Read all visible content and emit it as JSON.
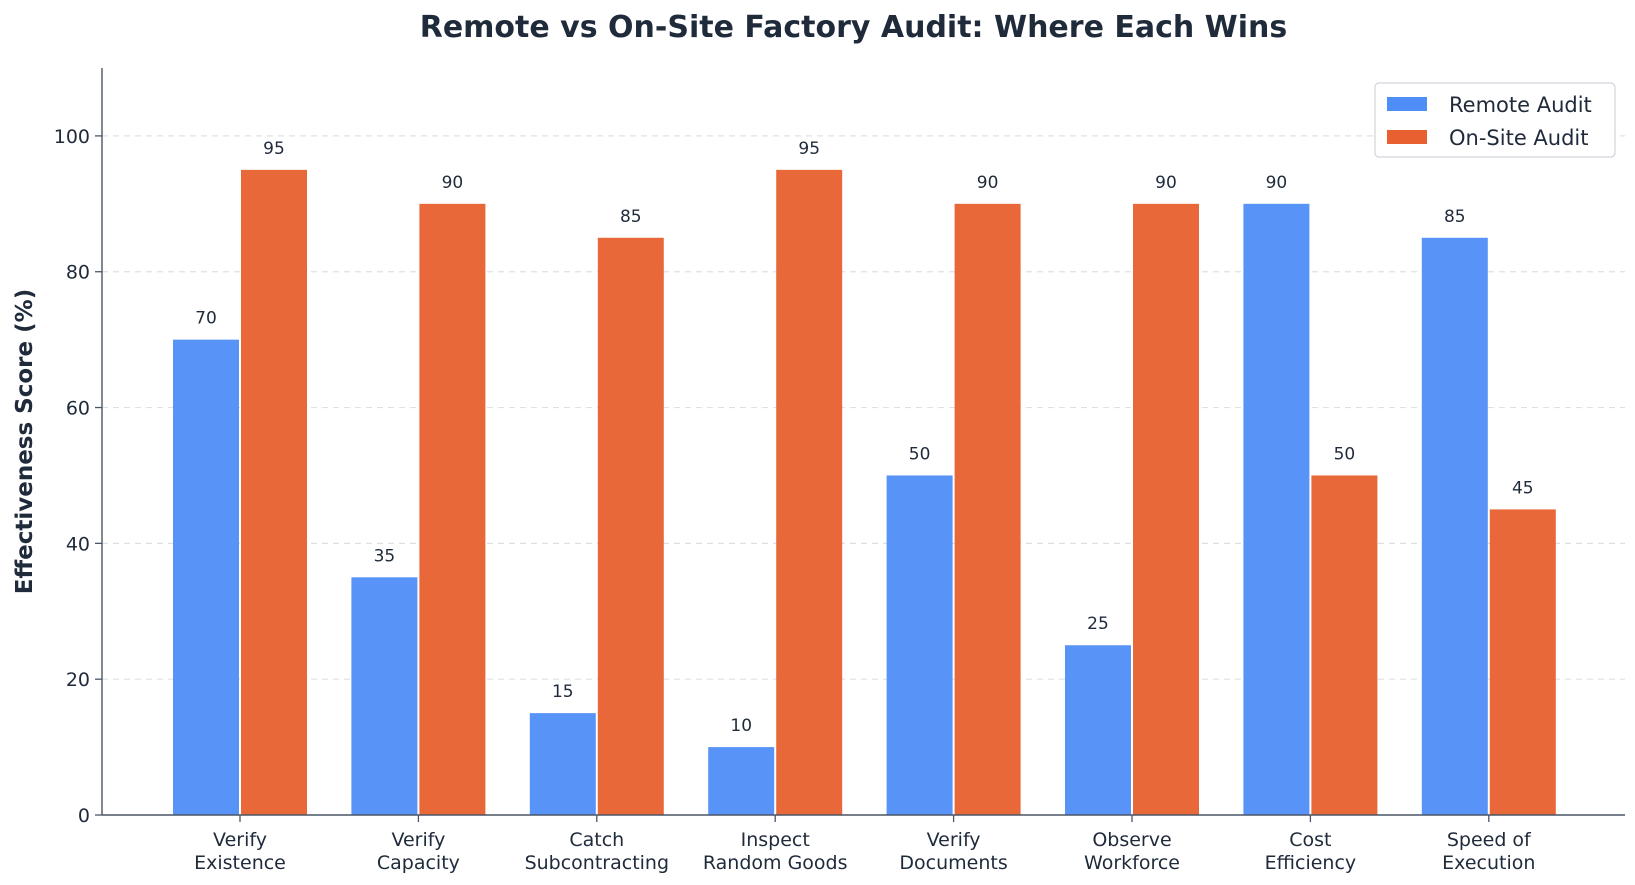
{
  "chart_data": {
    "type": "bar",
    "title": "Remote vs On-Site Factory Audit: Where Each Wins",
    "xlabel": "",
    "ylabel": "Effectiveness Score (%)",
    "ylim": [
      0,
      110
    ],
    "yticks": [
      0,
      20,
      40,
      60,
      80,
      100
    ],
    "grid": "horizontal dashed",
    "legend_position": "top-right",
    "categories": [
      [
        "Verify",
        "Existence"
      ],
      [
        "Verify",
        "Capacity"
      ],
      [
        "Catch",
        "Subcontracting"
      ],
      [
        "Inspect",
        "Random Goods"
      ],
      [
        "Verify",
        "Documents"
      ],
      [
        "Observe",
        "Workforce"
      ],
      [
        "Cost",
        "Efficiency"
      ],
      [
        "Speed of",
        "Execution"
      ]
    ],
    "series": [
      {
        "name": "Remote Audit",
        "color": "#4f8ef7",
        "values": [
          70,
          35,
          15,
          10,
          50,
          25,
          90,
          85
        ]
      },
      {
        "name": "On-Site Audit",
        "color": "#e8602f",
        "values": [
          95,
          90,
          85,
          95,
          90,
          90,
          50,
          45
        ]
      }
    ]
  }
}
